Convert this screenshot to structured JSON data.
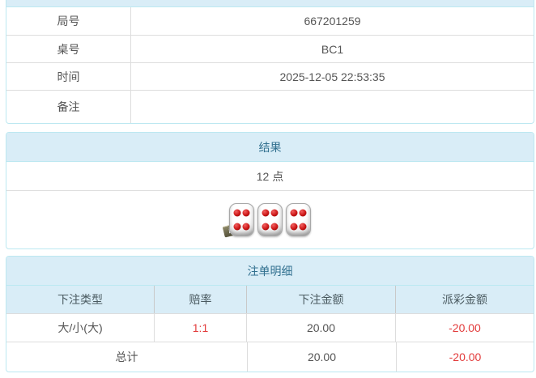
{
  "colors": {
    "panel_border": "#bce8f1",
    "header_bg": "#d9edf7",
    "header_text": "#31708f",
    "divider": "#dddddd",
    "text": "#555555",
    "negative_red": "#e23b3b"
  },
  "game_info": {
    "rows": [
      {
        "label": "局号",
        "value": "667201259"
      },
      {
        "label": "桌号",
        "value": "BC1"
      },
      {
        "label": "时间",
        "value": "2025-12-05 22:53:35"
      },
      {
        "label": "备注",
        "value": ""
      }
    ]
  },
  "result": {
    "title": "结果",
    "points": "12 点",
    "dice": [
      4,
      4,
      4
    ],
    "info_icon": "i"
  },
  "bet_details": {
    "title": "注单明细",
    "columns": [
      "下注类型",
      "赔率",
      "下注金额",
      "派彩金额"
    ],
    "rows": [
      {
        "type": "大/小(大)",
        "odds": "1:1",
        "bet": "20.00",
        "payout": "-20.00"
      }
    ],
    "total": {
      "label": "总计",
      "bet": "20.00",
      "payout": "-20.00"
    }
  }
}
